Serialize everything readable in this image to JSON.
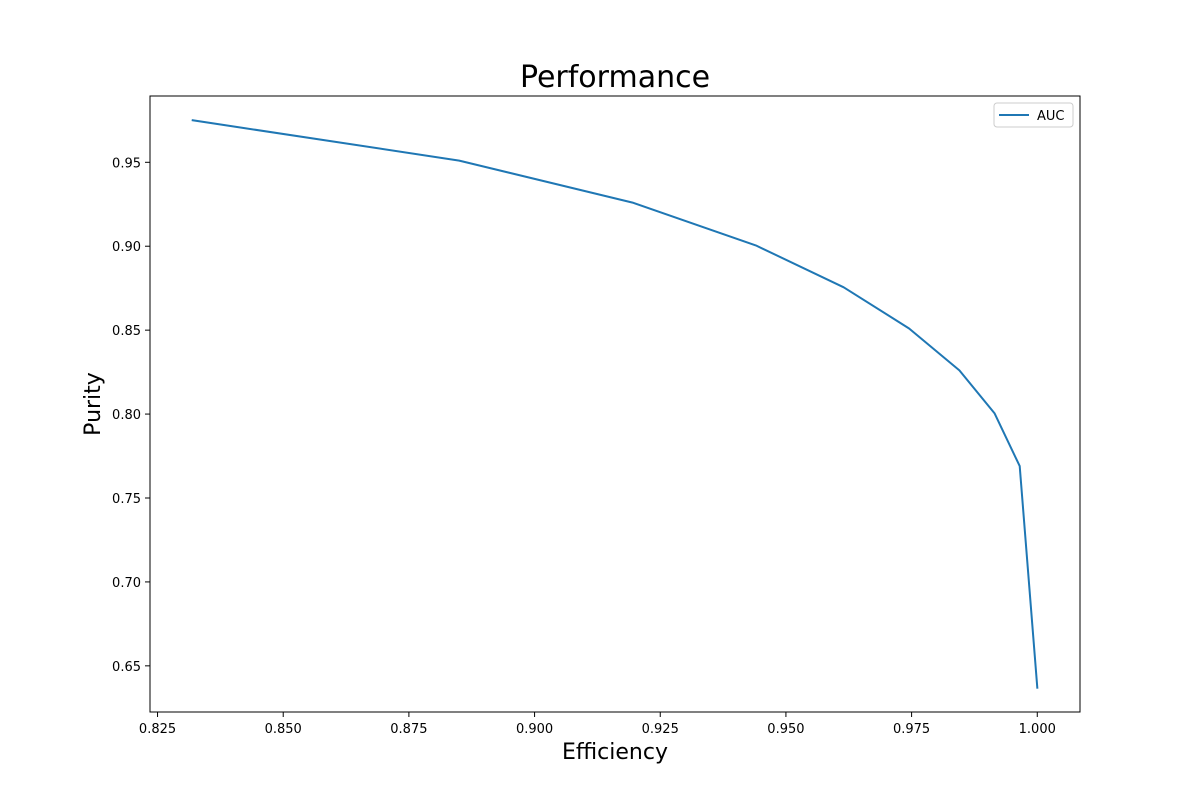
{
  "chart_data": {
    "type": "line",
    "title": "Performance",
    "xlabel": "Efficiency",
    "ylabel": "Purity",
    "xlim": [
      0.8235,
      1.0085
    ],
    "ylim": [
      0.6225,
      0.9895
    ],
    "xticks": [
      0.825,
      0.85,
      0.875,
      0.9,
      0.925,
      0.95,
      0.975,
      1.0
    ],
    "xtick_labels": [
      "0.825",
      "0.850",
      "0.875",
      "0.900",
      "0.925",
      "0.950",
      "0.975",
      "1.000"
    ],
    "yticks": [
      0.65,
      0.7,
      0.75,
      0.8,
      0.85,
      0.9,
      0.95
    ],
    "ytick_labels": [
      "0.65",
      "0.70",
      "0.75",
      "0.80",
      "0.85",
      "0.90",
      "0.95"
    ],
    "grid": false,
    "legend_position": "top-right",
    "series": [
      {
        "name": "AUC",
        "color": "#1f77b4",
        "x": [
          0.832,
          0.885,
          0.9195,
          0.944,
          0.9615,
          0.9745,
          0.9845,
          0.9915,
          0.9965,
          1.0
        ],
        "y": [
          0.975,
          0.951,
          0.926,
          0.9005,
          0.8755,
          0.851,
          0.826,
          0.8005,
          0.769,
          0.637
        ]
      }
    ]
  }
}
